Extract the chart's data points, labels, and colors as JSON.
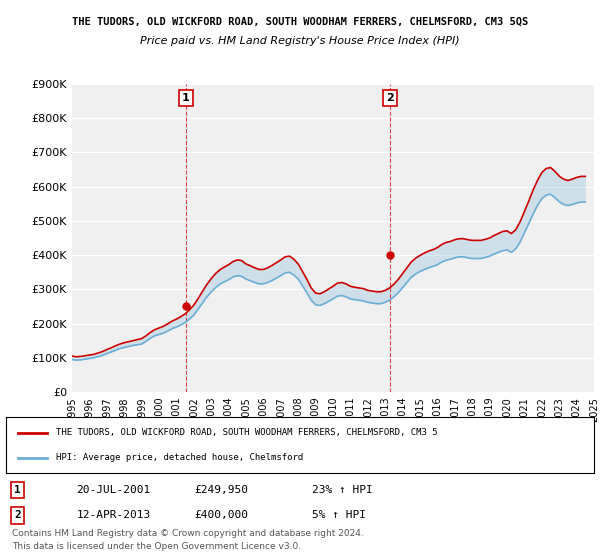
{
  "title": "THE TUDORS, OLD WICKFORD ROAD, SOUTH WOODHAM FERRERS, CHELMSFORD, CM3 5QS",
  "subtitle": "Price paid vs. HM Land Registry's House Price Index (HPI)",
  "ylabel": "",
  "ylim": [
    0,
    900000
  ],
  "yticks": [
    0,
    100000,
    200000,
    300000,
    400000,
    500000,
    600000,
    700000,
    800000,
    900000
  ],
  "ytick_labels": [
    "£0",
    "£100K",
    "£200K",
    "£300K",
    "£400K",
    "£500K",
    "£600K",
    "£700K",
    "£800K",
    "£900K"
  ],
  "background_color": "#ffffff",
  "plot_bg_color": "#f0f0f0",
  "sale1": {
    "date_num": 2001.55,
    "price": 249950,
    "label": "1",
    "date_str": "20-JUL-2001",
    "pct": "23%",
    "dir": "↑"
  },
  "sale2": {
    "date_num": 2013.28,
    "price": 400000,
    "label": "2",
    "date_str": "12-APR-2013",
    "pct": "5%",
    "dir": "↑"
  },
  "hpi_line_color": "#6baed6",
  "price_line_color": "#cc0000",
  "sale_marker_color": "#cc0000",
  "vline_color": "#cc0000",
  "legend_text1": "THE TUDORS, OLD WICKFORD ROAD, SOUTH WOODHAM FERRERS, CHELMSFORD, CM3 5",
  "legend_text2": "HPI: Average price, detached house, Chelmsford",
  "footer1": "Contains HM Land Registry data © Crown copyright and database right 2024.",
  "footer2": "This data is licensed under the Open Government Licence v3.0.",
  "hpi_data": {
    "years": [
      1995.0,
      1995.25,
      1995.5,
      1995.75,
      1996.0,
      1996.25,
      1996.5,
      1996.75,
      1997.0,
      1997.25,
      1997.5,
      1997.75,
      1998.0,
      1998.25,
      1998.5,
      1998.75,
      1999.0,
      1999.25,
      1999.5,
      1999.75,
      2000.0,
      2000.25,
      2000.5,
      2000.75,
      2001.0,
      2001.25,
      2001.5,
      2001.75,
      2002.0,
      2002.25,
      2002.5,
      2002.75,
      2003.0,
      2003.25,
      2003.5,
      2003.75,
      2004.0,
      2004.25,
      2004.5,
      2004.75,
      2005.0,
      2005.25,
      2005.5,
      2005.75,
      2006.0,
      2006.25,
      2006.5,
      2006.75,
      2007.0,
      2007.25,
      2007.5,
      2007.75,
      2008.0,
      2008.25,
      2008.5,
      2008.75,
      2009.0,
      2009.25,
      2009.5,
      2009.75,
      2010.0,
      2010.25,
      2010.5,
      2010.75,
      2011.0,
      2011.25,
      2011.5,
      2011.75,
      2012.0,
      2012.25,
      2012.5,
      2012.75,
      2013.0,
      2013.25,
      2013.5,
      2013.75,
      2014.0,
      2014.25,
      2014.5,
      2014.75,
      2015.0,
      2015.25,
      2015.5,
      2015.75,
      2016.0,
      2016.25,
      2016.5,
      2016.75,
      2017.0,
      2017.25,
      2017.5,
      2017.75,
      2018.0,
      2018.25,
      2018.5,
      2018.75,
      2019.0,
      2019.25,
      2019.5,
      2019.75,
      2020.0,
      2020.25,
      2020.5,
      2020.75,
      2021.0,
      2021.25,
      2021.5,
      2021.75,
      2022.0,
      2022.25,
      2022.5,
      2022.75,
      2023.0,
      2023.25,
      2023.5,
      2023.75,
      2024.0,
      2024.25,
      2024.5
    ],
    "values": [
      95000,
      93000,
      94000,
      96000,
      98000,
      100000,
      103000,
      107000,
      112000,
      117000,
      122000,
      127000,
      130000,
      133000,
      136000,
      138000,
      140000,
      148000,
      157000,
      164000,
      168000,
      172000,
      178000,
      185000,
      190000,
      196000,
      203000,
      213000,
      225000,
      242000,
      260000,
      278000,
      292000,
      305000,
      315000,
      322000,
      328000,
      336000,
      340000,
      338000,
      330000,
      325000,
      320000,
      316000,
      316000,
      320000,
      326000,
      333000,
      340000,
      348000,
      350000,
      342000,
      330000,
      310000,
      290000,
      268000,
      255000,
      253000,
      258000,
      265000,
      272000,
      280000,
      282000,
      278000,
      272000,
      270000,
      268000,
      266000,
      262000,
      260000,
      258000,
      258000,
      262000,
      268000,
      278000,
      290000,
      305000,
      320000,
      335000,
      345000,
      352000,
      358000,
      363000,
      367000,
      372000,
      380000,
      385000,
      388000,
      392000,
      395000,
      395000,
      392000,
      390000,
      390000,
      390000,
      393000,
      397000,
      403000,
      408000,
      413000,
      415000,
      408000,
      418000,
      438000,
      465000,
      492000,
      520000,
      545000,
      565000,
      575000,
      578000,
      568000,
      556000,
      548000,
      545000,
      548000,
      552000,
      555000,
      555000
    ]
  },
  "price_data": {
    "years": [
      1995.0,
      1995.25,
      1995.5,
      1995.75,
      1996.0,
      1996.25,
      1996.5,
      1996.75,
      1997.0,
      1997.25,
      1997.5,
      1997.75,
      1998.0,
      1998.25,
      1998.5,
      1998.75,
      1999.0,
      1999.25,
      1999.5,
      1999.75,
      2000.0,
      2000.25,
      2000.5,
      2000.75,
      2001.0,
      2001.25,
      2001.5,
      2001.75,
      2002.0,
      2002.25,
      2002.5,
      2002.75,
      2003.0,
      2003.25,
      2003.5,
      2003.75,
      2004.0,
      2004.25,
      2004.5,
      2004.75,
      2005.0,
      2005.25,
      2005.5,
      2005.75,
      2006.0,
      2006.25,
      2006.5,
      2006.75,
      2007.0,
      2007.25,
      2007.5,
      2007.75,
      2008.0,
      2008.25,
      2008.5,
      2008.75,
      2009.0,
      2009.25,
      2009.5,
      2009.75,
      2010.0,
      2010.25,
      2010.5,
      2010.75,
      2011.0,
      2011.25,
      2011.5,
      2011.75,
      2012.0,
      2012.25,
      2012.5,
      2012.75,
      2013.0,
      2013.25,
      2013.5,
      2013.75,
      2014.0,
      2014.25,
      2014.5,
      2014.75,
      2015.0,
      2015.25,
      2015.5,
      2015.75,
      2016.0,
      2016.25,
      2016.5,
      2016.75,
      2017.0,
      2017.25,
      2017.5,
      2017.75,
      2018.0,
      2018.25,
      2018.5,
      2018.75,
      2019.0,
      2019.25,
      2019.5,
      2019.75,
      2020.0,
      2020.25,
      2020.5,
      2020.75,
      2021.0,
      2021.25,
      2021.5,
      2021.75,
      2022.0,
      2022.25,
      2022.5,
      2022.75,
      2023.0,
      2023.25,
      2023.5,
      2023.75,
      2024.0,
      2024.25,
      2024.5
    ],
    "values": [
      105000,
      103000,
      104000,
      106000,
      108000,
      110000,
      114000,
      118000,
      124000,
      129000,
      135000,
      140000,
      144000,
      147000,
      150000,
      153000,
      156000,
      164000,
      174000,
      182000,
      187000,
      192000,
      199000,
      207000,
      213000,
      220000,
      228000,
      240000,
      254000,
      273000,
      294000,
      314000,
      331000,
      346000,
      357000,
      365000,
      372000,
      381000,
      386000,
      384000,
      374000,
      369000,
      363000,
      358000,
      358000,
      363000,
      370000,
      378000,
      386000,
      395000,
      397000,
      388000,
      374000,
      352000,
      329000,
      304000,
      289000,
      287000,
      293000,
      301000,
      309000,
      318000,
      320000,
      316000,
      309000,
      306000,
      304000,
      302000,
      297000,
      295000,
      293000,
      293000,
      297000,
      304000,
      315000,
      329000,
      346000,
      363000,
      380000,
      391000,
      399000,
      406000,
      412000,
      416000,
      422000,
      431000,
      437000,
      440000,
      445000,
      448000,
      448000,
      445000,
      443000,
      443000,
      443000,
      446000,
      450000,
      457000,
      463000,
      469000,
      471000,
      463000,
      474000,
      497000,
      527000,
      558000,
      590000,
      618000,
      641000,
      653000,
      656000,
      645000,
      631000,
      622000,
      618000,
      622000,
      627000,
      630000,
      630000
    ]
  },
  "xmin": 1995.0,
  "xmax": 2025.0,
  "xticks": [
    1995,
    1996,
    1997,
    1998,
    1999,
    2000,
    2001,
    2002,
    2003,
    2004,
    2005,
    2006,
    2007,
    2008,
    2009,
    2010,
    2011,
    2012,
    2013,
    2014,
    2015,
    2016,
    2017,
    2018,
    2019,
    2020,
    2021,
    2022,
    2023,
    2024,
    2025
  ]
}
